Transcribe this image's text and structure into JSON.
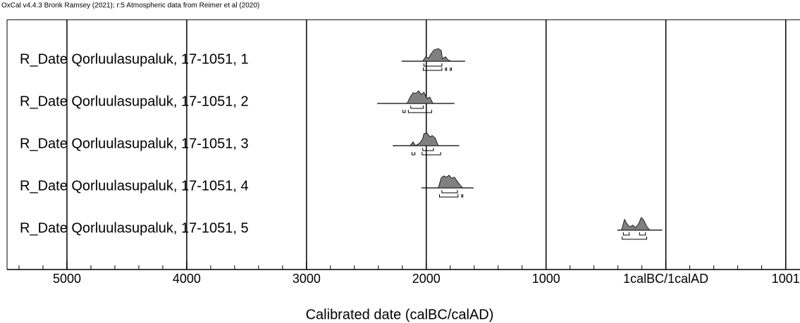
{
  "chart_data": {
    "type": "multiplot",
    "header": "OxCal v4.4.3 Bronk Ramsey (2021); r:5 Atmospheric data from Reimer et al (2020)",
    "xlabel": "Calibrated date (calBC/calAD)",
    "xlim": [
      -5500,
      1120
    ],
    "xticks": [
      {
        "value": -5000,
        "label": "5000"
      },
      {
        "value": -4000,
        "label": "4000"
      },
      {
        "value": -3000,
        "label": "3000"
      },
      {
        "value": -2000,
        "label": "2000"
      },
      {
        "value": -1000,
        "label": "1000"
      },
      {
        "value": 0,
        "label": "1calBC/1calAD"
      },
      1001
    ],
    "xticks_minor": [
      -5400,
      -5200,
      -5000,
      -4800,
      -4600,
      -4400,
      -4200,
      -4000,
      -3800,
      -3600,
      -3400,
      -3200,
      -3000,
      -2800,
      -2600,
      -2400,
      -2200,
      -2000,
      -1800,
      -1600,
      -1400,
      -1200,
      -1000,
      -800,
      -600,
      -400,
      -200,
      0,
      200,
      400,
      600,
      800,
      1000
    ],
    "grid": true,
    "color": "#808080",
    "dates": [
      {
        "label": "R_Date Qorluulasupaluk, 17-1051, 1",
        "prior": [
          -2206,
          -1676
        ],
        "x": [
          -2030,
          -2005,
          -1980,
          -1960,
          -1935,
          -1900,
          -1875,
          -1865,
          -1840,
          -1820,
          -1795
        ],
        "prob": [
          0,
          35,
          25,
          60,
          90,
          100,
          85,
          20,
          35,
          12,
          0
        ],
        "range_1sigma": [
          [
            -2020,
            -1870
          ]
        ],
        "range_2sigma": [
          [
            -2025,
            -1870
          ],
          [
            -1840,
            -1830
          ],
          [
            -1800,
            -1790
          ]
        ]
      },
      {
        "label": "R_Date Qorluulasupaluk, 17-1051, 2",
        "prior": [
          -2410,
          -1765
        ],
        "x": [
          -2160,
          -2135,
          -2110,
          -2085,
          -2065,
          -2040,
          -2020,
          -1995,
          -1970,
          -1945
        ],
        "prob": [
          0,
          50,
          85,
          80,
          100,
          70,
          90,
          40,
          50,
          0
        ],
        "range_1sigma": [
          [
            -2130,
            -2025
          ]
        ],
        "range_2sigma": [
          [
            -2195,
            -2175
          ],
          [
            -2150,
            -1955
          ]
        ]
      },
      {
        "label": "R_Date Qorluulasupaluk, 17-1051, 3",
        "prior": [
          -2280,
          -1725
        ],
        "x": [
          -2135,
          -2110,
          -2090,
          -2055,
          -2030,
          -2020,
          -1995,
          -1970,
          -1950,
          -1925,
          -1900
        ],
        "prob": [
          0,
          30,
          0,
          20,
          55,
          95,
          100,
          70,
          80,
          60,
          0
        ],
        "range_1sigma": [
          [
            -2030,
            -1940
          ]
        ],
        "range_2sigma": [
          [
            -2120,
            -2095
          ],
          [
            -2035,
            -1880
          ]
        ]
      },
      {
        "label": "R_Date Qorluulasupaluk, 17-1051, 4",
        "prior": [
          -2040,
          -1605
        ],
        "x": [
          -1900,
          -1875,
          -1855,
          -1830,
          -1810,
          -1785,
          -1765,
          -1740,
          -1715,
          -1695
        ],
        "prob": [
          0,
          80,
          95,
          85,
          100,
          75,
          85,
          50,
          20,
          0
        ],
        "range_1sigma": [
          [
            -1870,
            -1740
          ]
        ],
        "range_2sigma": [
          [
            -1890,
            -1735
          ],
          [
            -1705,
            -1695
          ]
        ]
      },
      {
        "label": "R_Date Qorluulasupaluk, 17-1051, 5",
        "prior": [
          -405,
          -30
        ],
        "x": [
          -370,
          -345,
          -325,
          -300,
          -275,
          -255,
          -230,
          -205,
          -185,
          -160,
          -135
        ],
        "prob": [
          0,
          85,
          50,
          25,
          40,
          20,
          45,
          100,
          80,
          30,
          0
        ],
        "range_1sigma": [
          [
            -355,
            -305
          ],
          [
            -220,
            -170
          ]
        ],
        "range_2sigma": [
          [
            -365,
            -160
          ]
        ]
      }
    ]
  }
}
